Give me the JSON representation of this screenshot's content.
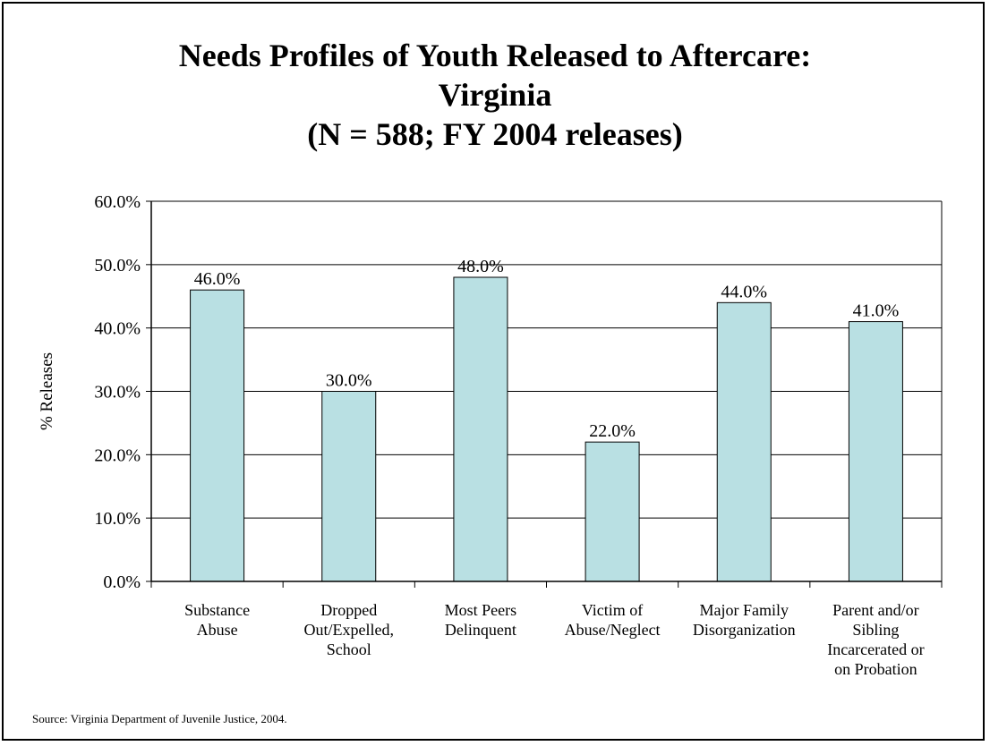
{
  "chart_data": {
    "type": "bar",
    "title_lines": [
      "Needs Profiles of Youth Released to Aftercare:",
      "Virginia",
      "(N = 588; FY 2004 releases)"
    ],
    "ylabel": "% Releases",
    "xlabel": "",
    "ylim": [
      0,
      60
    ],
    "yticks": [
      "0.0%",
      "10.0%",
      "20.0%",
      "30.0%",
      "40.0%",
      "50.0%",
      "60.0%"
    ],
    "grid": true,
    "categories": [
      [
        "Substance",
        "Abuse"
      ],
      [
        "Dropped",
        "Out/Expelled,",
        "School"
      ],
      [
        "Most Peers",
        "Delinquent"
      ],
      [
        "Victim of",
        "Abuse/Neglect"
      ],
      [
        "Major Family",
        "Disorganization"
      ],
      [
        "Parent and/or",
        "Sibling",
        "Incarcerated or",
        "on Probation"
      ]
    ],
    "values": [
      46.0,
      30.0,
      48.0,
      22.0,
      44.0,
      41.0
    ],
    "value_labels": [
      "46.0%",
      "30.0%",
      "48.0%",
      "22.0%",
      "44.0%",
      "41.0%"
    ],
    "bar_color": "#b9e0e3"
  },
  "source": "Source:  Virginia Department of Juvenile Justice, 2004."
}
